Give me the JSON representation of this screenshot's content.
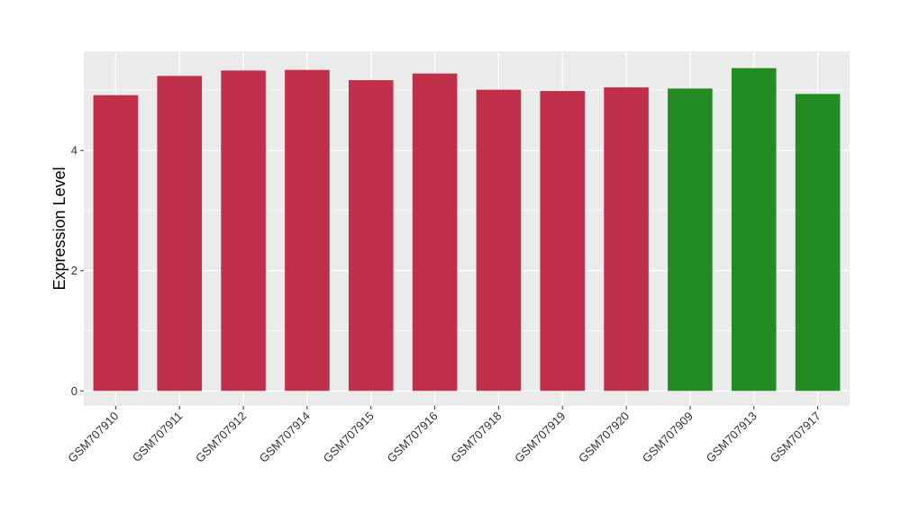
{
  "chart_data": {
    "type": "bar",
    "title": "",
    "xlabel": "",
    "ylabel": "Expression Level",
    "ylim": [
      -0.25,
      5.65
    ],
    "yticks": [
      0,
      2,
      4
    ],
    "grid": true,
    "legend": "none",
    "categories": [
      "GSM707910",
      "GSM707911",
      "GSM707912",
      "GSM707914",
      "GSM707915",
      "GSM707916",
      "GSM707918",
      "GSM707919",
      "GSM707920",
      "GSM707909",
      "GSM707913",
      "GSM707917"
    ],
    "values": [
      4.92,
      5.24,
      5.33,
      5.34,
      5.17,
      5.28,
      5.01,
      4.99,
      5.05,
      5.03,
      5.37,
      4.94
    ],
    "groups": [
      "A",
      "A",
      "A",
      "A",
      "A",
      "A",
      "A",
      "A",
      "A",
      "B",
      "B",
      "B"
    ],
    "colors": {
      "A": "#c0304a",
      "B": "#228b22"
    },
    "panel_background": "#ebebeb",
    "grid_color": "#ffffff"
  }
}
